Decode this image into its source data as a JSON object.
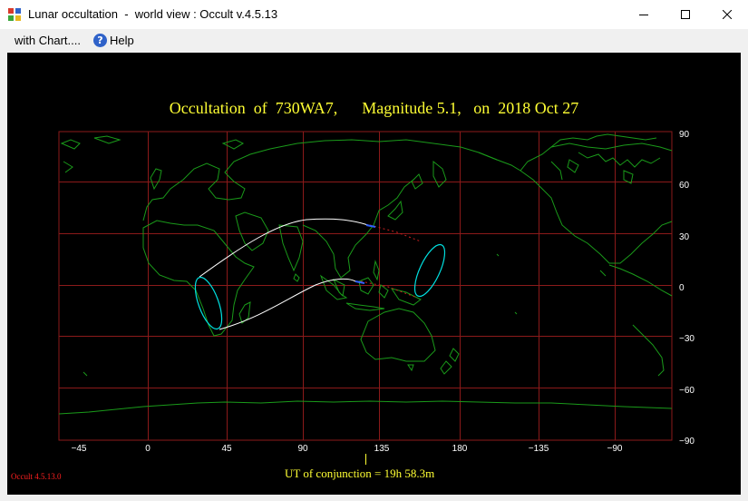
{
  "window": {
    "title": "Lunar occultation  -  world view : Occult v.4.5.13"
  },
  "menu": {
    "items": [
      {
        "label": "with Chart...."
      },
      {
        "label": "Help"
      }
    ]
  },
  "chart": {
    "title": "Occultation  of  730WA7,      Magnitude 5.1,   on  2018 Oct 27",
    "ut_label": "UT of conjunction = 19h 58.3m",
    "version": "Occult 4.5.13.0",
    "lon_ticks": [
      "−45",
      "0",
      "45",
      "90",
      "135",
      "180",
      "−135",
      "−90"
    ],
    "lat_ticks": [
      "90",
      "60",
      "30",
      "0",
      "−30",
      "−60",
      "−90"
    ]
  },
  "colors": {
    "coast": "#1a9a1a",
    "grid": "#8b1a1a",
    "path": "#ffffff",
    "limit": "#00e0e0",
    "text": "#ffff33",
    "version": "#ff2020"
  }
}
